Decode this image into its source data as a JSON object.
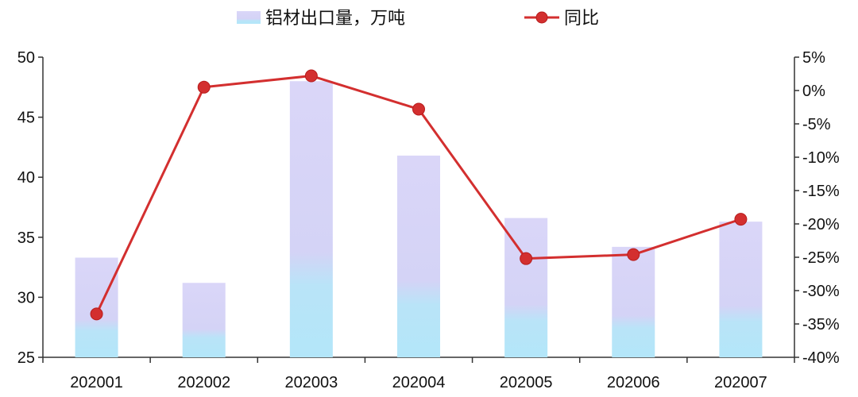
{
  "chart_data": {
    "type": "bar+line",
    "categories": [
      "202001",
      "202002",
      "202003",
      "202004",
      "202005",
      "202006",
      "202007"
    ],
    "series": [
      {
        "name": "铝材出口量，万吨",
        "type": "bar",
        "axis": "left",
        "values": [
          33.3,
          31.2,
          48.0,
          41.8,
          36.6,
          34.2,
          36.3
        ],
        "color_top": "#d9d5f7",
        "color_bottom": "#b6e6f8"
      },
      {
        "name": "同比",
        "type": "line",
        "axis": "right",
        "values": [
          -33.5,
          0.5,
          2.2,
          -2.8,
          -25.2,
          -24.6,
          -19.3
        ],
        "color": "#d32f2f"
      }
    ],
    "y_left": {
      "min": 25,
      "max": 50,
      "ticks": [
        "25",
        "30",
        "35",
        "40",
        "45",
        "50"
      ]
    },
    "y_right": {
      "min": -40,
      "max": 5,
      "ticks": [
        "-40%",
        "-35%",
        "-30%",
        "-25%",
        "-20%",
        "-15%",
        "-10%",
        "-5%",
        "0%",
        "5%"
      ]
    },
    "legend_position": "top-center",
    "grid": false
  }
}
